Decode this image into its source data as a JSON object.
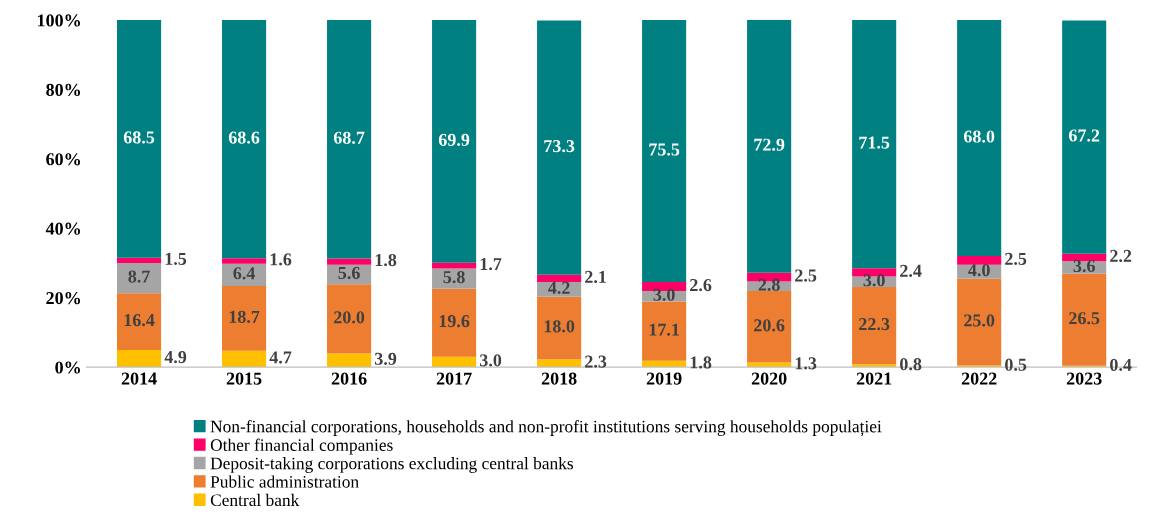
{
  "chart_data": {
    "type": "bar",
    "stacked": true,
    "categories": [
      "2014",
      "2015",
      "2016",
      "2017",
      "2018",
      "2019",
      "2020",
      "2021",
      "2022",
      "2023"
    ],
    "series": [
      {
        "name": "Central bank",
        "color": "#ffc000",
        "values": [
          4.9,
          4.7,
          3.9,
          3.0,
          2.3,
          1.8,
          1.3,
          0.8,
          0.5,
          0.4
        ],
        "value_labels": [
          "4.9",
          "4.7",
          "3.9",
          "3.0",
          "2.3",
          "1.8",
          "1.3",
          "0.8",
          "0.5",
          "0.4"
        ]
      },
      {
        "name": "Public administration",
        "color": "#ed7d31",
        "values": [
          16.4,
          18.7,
          20.0,
          19.6,
          18.0,
          17.1,
          20.6,
          22.3,
          25.0,
          26.5
        ],
        "value_labels": [
          "16.4",
          "18.7",
          "20.0",
          "19.6",
          "18.0",
          "17.1",
          "20.6",
          "22.3",
          "25.0",
          "26.5"
        ]
      },
      {
        "name": "Deposit-taking corporations excluding central banks",
        "color": "#a5a5a5",
        "values": [
          8.7,
          6.4,
          5.6,
          5.8,
          4.2,
          3.0,
          2.8,
          3.0,
          4.0,
          3.6
        ],
        "value_labels": [
          "8.7",
          "6.4",
          "5.6",
          "5.8",
          "4.2",
          "3.0",
          "2.8",
          "3.0",
          "4.0",
          "3.6"
        ]
      },
      {
        "name": "Other financial companies",
        "color": "#ff0066",
        "values": [
          1.5,
          1.6,
          1.8,
          1.7,
          2.1,
          2.6,
          2.5,
          2.4,
          2.5,
          2.2
        ],
        "value_labels": [
          "1.5",
          "1.6",
          "1.8",
          "1.7",
          "2.1",
          "2.6",
          "2.5",
          "2.4",
          "2.5",
          "2.2"
        ]
      },
      {
        "name": "Non-financial corporations, households and non-profit institutions serving households populației",
        "color": "#008080",
        "values": [
          68.5,
          68.6,
          68.7,
          69.9,
          73.3,
          75.5,
          72.9,
          71.5,
          68.0,
          67.2
        ],
        "value_labels": [
          "68.5",
          "68.6",
          "68.7",
          "69.9",
          "73.3",
          "75.5",
          "72.9",
          "71.5",
          "68.0",
          "67.2"
        ]
      }
    ],
    "ylim": [
      0,
      100.1
    ],
    "yticks": [
      {
        "value": 0,
        "label": "0%"
      },
      {
        "value": 20,
        "label": "20%"
      },
      {
        "value": 40,
        "label": "40%"
      },
      {
        "value": 60,
        "label": "60%"
      },
      {
        "value": 80,
        "label": "80%"
      },
      {
        "value": 100,
        "label": "100%"
      }
    ],
    "legend": "bottom",
    "grid": false
  }
}
